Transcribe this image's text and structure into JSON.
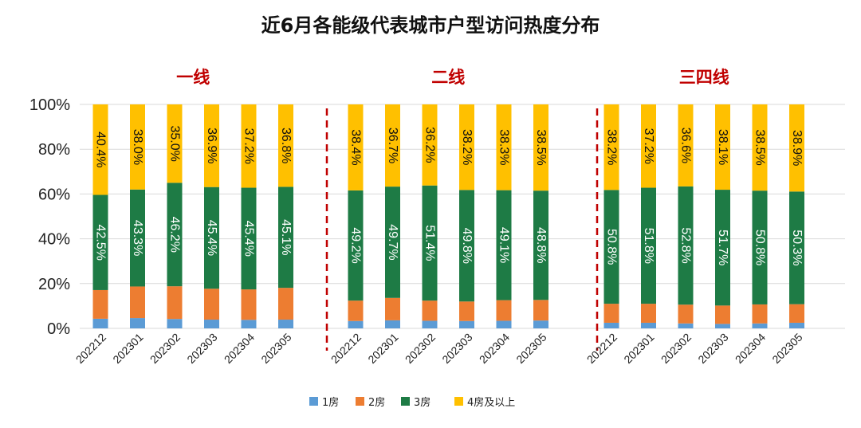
{
  "chart_data": {
    "type": "bar",
    "stacked": true,
    "title": "近6月各能级代表城市户型访问热度分布",
    "y_ticks": [
      "0%",
      "20%",
      "40%",
      "60%",
      "80%",
      "100%"
    ],
    "ylim": [
      0,
      100
    ],
    "legend_position": "bottom",
    "series": [
      {
        "name": "1房",
        "color": "#5b9bd5"
      },
      {
        "name": "2房",
        "color": "#ed7d31"
      },
      {
        "name": "3房",
        "color": "#1e7b45"
      },
      {
        "name": "4房及以上",
        "color": "#ffc000"
      }
    ],
    "groups": [
      {
        "name": "一线",
        "categories": [
          "202212",
          "202301",
          "202302",
          "202303",
          "202304",
          "202305"
        ],
        "values": {
          "1房": [
            4.3,
            4.6,
            4.2,
            3.9,
            3.8,
            3.9
          ],
          "2房": [
            12.8,
            14.1,
            14.6,
            13.8,
            13.6,
            14.2
          ],
          "3房": [
            42.5,
            43.3,
            46.2,
            45.4,
            45.4,
            45.1
          ],
          "4房及以上": [
            40.4,
            38.0,
            35.0,
            36.9,
            37.2,
            36.8
          ]
        },
        "labels": {
          "3房": [
            "42.5%",
            "43.3%",
            "46.2%",
            "45.4%",
            "45.4%",
            "45.1%"
          ],
          "4房及以上": [
            "40.4%",
            "38.0%",
            "35.0%",
            "36.9%",
            "37.2%",
            "36.8%"
          ]
        }
      },
      {
        "name": "二线",
        "categories": [
          "202212",
          "202301",
          "202302",
          "202303",
          "202304",
          "202305"
        ],
        "values": {
          "1房": [
            3.3,
            3.6,
            3.4,
            3.3,
            3.4,
            3.5
          ],
          "2房": [
            9.1,
            10.0,
            9.0,
            8.7,
            9.2,
            9.2
          ],
          "3房": [
            49.2,
            49.7,
            51.4,
            49.8,
            49.1,
            48.8
          ],
          "4房及以上": [
            38.4,
            36.7,
            36.2,
            38.2,
            38.3,
            38.5
          ]
        },
        "labels": {
          "3房": [
            "49.2%",
            "49.7%",
            "51.4%",
            "49.8%",
            "49.1%",
            "48.8%"
          ],
          "4房及以上": [
            "38.4%",
            "36.7%",
            "36.2%",
            "38.2%",
            "38.3%",
            "38.5%"
          ]
        }
      },
      {
        "name": "三四线",
        "categories": [
          "202212",
          "202301",
          "202302",
          "202303",
          "202304",
          "202305"
        ],
        "values": {
          "1房": [
            2.5,
            2.5,
            2.2,
            2.0,
            2.2,
            2.5
          ],
          "2房": [
            8.5,
            8.5,
            8.4,
            8.2,
            8.5,
            8.3
          ],
          "3房": [
            50.8,
            51.8,
            52.8,
            51.7,
            50.8,
            50.3
          ],
          "4房及以上": [
            38.2,
            37.2,
            36.6,
            38.1,
            38.5,
            38.9
          ]
        },
        "labels": {
          "3房": [
            "50.8%",
            "51.8%",
            "52.8%",
            "51.7%",
            "50.8%",
            "50.3%"
          ],
          "4房及以上": [
            "38.2%",
            "37.2%",
            "36.6%",
            "38.1%",
            "38.5%",
            "38.9%"
          ]
        }
      }
    ]
  }
}
